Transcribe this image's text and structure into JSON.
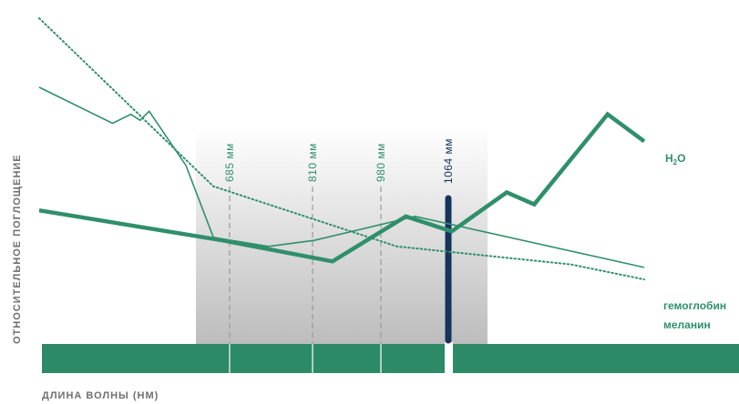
{
  "colors": {
    "green": "#2f8f6b",
    "green_dark": "#2c8a66",
    "navy": "#14355a",
    "band_top": "#ffffff",
    "band_bottom": "#bcbcbc",
    "dash": "#9a9a9a",
    "axis_text": "#6f6f6f"
  },
  "chart_data": {
    "type": "line",
    "xlabel": "ДЛИНА ВОЛНЫ (НМ)",
    "ylabel": "ОТНОСИТЕЛЬНОЕ ПОГЛОЩЕНИЕ",
    "wavelength_markers": [
      {
        "value": 685,
        "label": "685 мм",
        "highlight": false
      },
      {
        "value": 810,
        "label": "810 мм",
        "highlight": false
      },
      {
        "value": 980,
        "label": "980 мм",
        "highlight": false
      },
      {
        "value": 1064,
        "label": "1064 мм",
        "highlight": true
      }
    ],
    "series": [
      {
        "name": "H₂O",
        "label_main": "H",
        "label_sub": "2",
        "label_tail": "O",
        "style": "thick",
        "points": [
          [
            0.0,
            0.36
          ],
          [
            0.2,
            0.26
          ],
          [
            0.32,
            0.19
          ],
          [
            0.4,
            0.34
          ],
          [
            0.45,
            0.29
          ],
          [
            0.51,
            0.42
          ],
          [
            0.54,
            0.38
          ],
          [
            0.62,
            0.68
          ],
          [
            0.66,
            0.59
          ]
        ]
      },
      {
        "name": "гемоглобин",
        "style": "thin",
        "points": [
          [
            0.0,
            0.77
          ],
          [
            0.08,
            0.65
          ],
          [
            0.1,
            0.68
          ],
          [
            0.11,
            0.66
          ],
          [
            0.12,
            0.69
          ],
          [
            0.16,
            0.51
          ],
          [
            0.19,
            0.27
          ],
          [
            0.25,
            0.24
          ],
          [
            0.3,
            0.26
          ],
          [
            0.41,
            0.34
          ],
          [
            0.66,
            0.17
          ]
        ]
      },
      {
        "name": "меланин",
        "style": "dotted",
        "points": [
          [
            0.0,
            1.0
          ],
          [
            0.19,
            0.44
          ],
          [
            0.39,
            0.24
          ],
          [
            0.58,
            0.18
          ],
          [
            0.66,
            0.13
          ]
        ]
      }
    ]
  }
}
